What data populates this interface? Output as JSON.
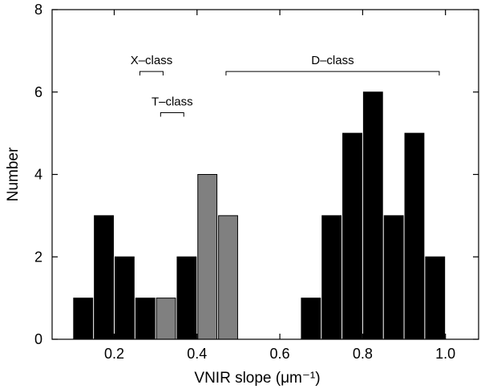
{
  "chart_data": {
    "type": "bar",
    "title": "",
    "xlabel": "VNIR slope (μm⁻¹)",
    "ylabel": "Number",
    "xlim": [
      0.05,
      1.08
    ],
    "ylim": [
      0,
      8
    ],
    "xticks": [
      0.2,
      0.4,
      0.6,
      0.8,
      1.0
    ],
    "xtick_labels": [
      "0.2",
      "0.4",
      "0.6",
      "0.8",
      "1.0"
    ],
    "yticks": [
      0,
      2,
      4,
      6,
      8
    ],
    "ytick_labels": [
      "0",
      "2",
      "4",
      "6",
      "8"
    ],
    "bin_width": 0.05,
    "colors": {
      "black": "#000000",
      "gray": "#808080"
    },
    "bars": [
      {
        "x": 0.125,
        "value": 1,
        "color": "black"
      },
      {
        "x": 0.175,
        "value": 3,
        "color": "black"
      },
      {
        "x": 0.225,
        "value": 2,
        "color": "black"
      },
      {
        "x": 0.275,
        "value": 1,
        "color": "black"
      },
      {
        "x": 0.325,
        "value": 1,
        "color": "gray"
      },
      {
        "x": 0.375,
        "value": 2,
        "color": "black"
      },
      {
        "x": 0.425,
        "value": 4,
        "color": "gray"
      },
      {
        "x": 0.475,
        "value": 3,
        "color": "gray"
      },
      {
        "x": 0.675,
        "value": 1,
        "color": "black"
      },
      {
        "x": 0.725,
        "value": 3,
        "color": "black"
      },
      {
        "x": 0.775,
        "value": 5,
        "color": "black"
      },
      {
        "x": 0.825,
        "value": 6,
        "color": "black"
      },
      {
        "x": 0.875,
        "value": 3,
        "color": "black"
      },
      {
        "x": 0.925,
        "value": 5,
        "color": "black"
      },
      {
        "x": 0.975,
        "value": 2,
        "color": "black"
      }
    ],
    "annotations": [
      {
        "text": "X–class",
        "x_start": 0.262,
        "x_end": 0.318,
        "y": 6.5
      },
      {
        "text": "T–class",
        "x_start": 0.312,
        "x_end": 0.368,
        "y": 5.5
      },
      {
        "text": "D–class",
        "x_start": 0.47,
        "x_end": 0.985,
        "y": 6.5
      }
    ]
  }
}
